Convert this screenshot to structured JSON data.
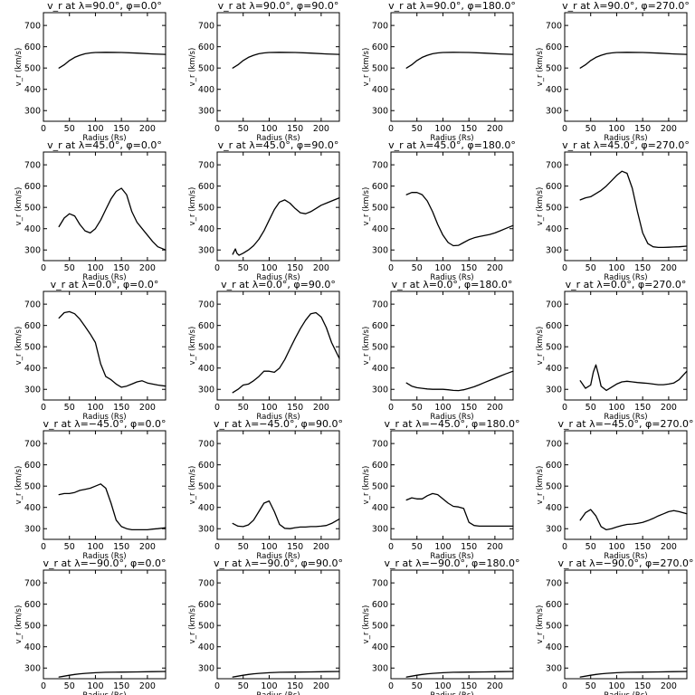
{
  "figure": {
    "background": "#ffffff",
    "line_color": "#000000"
  },
  "chart_data": [
    {
      "type": "line",
      "row": 0,
      "col": 0,
      "title": "v_r at λ=90.0°, φ=0.0°",
      "xlabel": "Radius (Rs)",
      "ylabel": "v_r (km/s)",
      "xlim": [
        0,
        235
      ],
      "ylim": [
        250,
        760
      ],
      "xticks": [
        0,
        50,
        100,
        150,
        200
      ],
      "yticks": [
        300,
        400,
        500,
        600,
        700
      ],
      "x": [
        30,
        40,
        50,
        60,
        70,
        80,
        90,
        100,
        120,
        150,
        180,
        210,
        235
      ],
      "y": [
        500,
        515,
        535,
        550,
        560,
        567,
        571,
        573,
        574,
        573,
        570,
        566,
        564
      ]
    },
    {
      "type": "line",
      "row": 0,
      "col": 1,
      "title": "v_r at λ=90.0°, φ=90.0°",
      "xlabel": "Radius (Rs)",
      "ylabel": "v_r (km/s)",
      "xlim": [
        0,
        235
      ],
      "ylim": [
        250,
        760
      ],
      "xticks": [
        0,
        50,
        100,
        150,
        200
      ],
      "yticks": [
        300,
        400,
        500,
        600,
        700
      ],
      "x": [
        30,
        40,
        50,
        60,
        70,
        80,
        90,
        100,
        120,
        150,
        180,
        210,
        235
      ],
      "y": [
        500,
        515,
        535,
        550,
        560,
        567,
        571,
        573,
        574,
        573,
        570,
        566,
        564
      ]
    },
    {
      "type": "line",
      "row": 0,
      "col": 2,
      "title": "v_r at λ=90.0°, φ=180.0°",
      "xlabel": "Radius (Rs)",
      "ylabel": "v_r (km/s)",
      "xlim": [
        0,
        235
      ],
      "ylim": [
        250,
        760
      ],
      "xticks": [
        0,
        50,
        100,
        150,
        200
      ],
      "yticks": [
        300,
        400,
        500,
        600,
        700
      ],
      "x": [
        30,
        40,
        50,
        60,
        70,
        80,
        90,
        100,
        120,
        150,
        180,
        210,
        235
      ],
      "y": [
        500,
        515,
        535,
        550,
        560,
        567,
        571,
        573,
        574,
        573,
        570,
        566,
        564
      ]
    },
    {
      "type": "line",
      "row": 0,
      "col": 3,
      "title": "v_r at λ=90.0°, φ=270.0°",
      "xlabel": "Radius (Rs)",
      "ylabel": "v_r (km/s)",
      "xlim": [
        0,
        235
      ],
      "ylim": [
        250,
        760
      ],
      "xticks": [
        0,
        50,
        100,
        150,
        200
      ],
      "yticks": [
        300,
        400,
        500,
        600,
        700
      ],
      "x": [
        30,
        40,
        50,
        60,
        70,
        80,
        90,
        100,
        120,
        150,
        180,
        210,
        235
      ],
      "y": [
        500,
        515,
        535,
        550,
        560,
        567,
        571,
        573,
        574,
        573,
        570,
        566,
        564
      ]
    },
    {
      "type": "line",
      "row": 1,
      "col": 0,
      "title": "v_r at λ=45.0°, φ=0.0°",
      "xlabel": "Radius (Rs)",
      "ylabel": "v_r (km/s)",
      "xlim": [
        0,
        235
      ],
      "ylim": [
        250,
        760
      ],
      "xticks": [
        0,
        50,
        100,
        150,
        200
      ],
      "yticks": [
        300,
        400,
        500,
        600,
        700
      ],
      "x": [
        30,
        40,
        50,
        60,
        70,
        80,
        90,
        100,
        110,
        120,
        130,
        140,
        150,
        160,
        170,
        180,
        190,
        200,
        210,
        220,
        235
      ],
      "y": [
        410,
        450,
        470,
        460,
        420,
        390,
        380,
        400,
        440,
        490,
        540,
        575,
        590,
        560,
        480,
        430,
        400,
        370,
        340,
        315,
        300
      ]
    },
    {
      "type": "line",
      "row": 1,
      "col": 1,
      "title": "v_r at λ=45.0°, φ=90.0°",
      "xlabel": "Radius (Rs)",
      "ylabel": "v_r (km/s)",
      "xlim": [
        0,
        235
      ],
      "ylim": [
        250,
        760
      ],
      "xticks": [
        0,
        50,
        100,
        150,
        200
      ],
      "yticks": [
        300,
        400,
        500,
        600,
        700
      ],
      "x": [
        30,
        35,
        38,
        42,
        50,
        60,
        70,
        80,
        90,
        100,
        110,
        120,
        130,
        140,
        150,
        160,
        170,
        180,
        190,
        200,
        210,
        220,
        235
      ],
      "y": [
        280,
        305,
        285,
        275,
        285,
        300,
        320,
        350,
        390,
        440,
        490,
        525,
        535,
        520,
        495,
        475,
        470,
        480,
        495,
        510,
        520,
        530,
        545
      ]
    },
    {
      "type": "line",
      "row": 1,
      "col": 2,
      "title": "v_r at λ=45.0°, φ=180.0°",
      "xlabel": "Radius (Rs)",
      "ylabel": "v_r (km/s)",
      "xlim": [
        0,
        235
      ],
      "ylim": [
        250,
        760
      ],
      "xticks": [
        0,
        50,
        100,
        150,
        200
      ],
      "yticks": [
        300,
        400,
        500,
        600,
        700
      ],
      "x": [
        30,
        40,
        50,
        60,
        70,
        80,
        90,
        100,
        110,
        120,
        130,
        140,
        150,
        160,
        170,
        180,
        190,
        200,
        210,
        220,
        235
      ],
      "y": [
        560,
        570,
        570,
        560,
        530,
        480,
        420,
        370,
        335,
        320,
        322,
        335,
        348,
        357,
        363,
        368,
        373,
        380,
        390,
        400,
        415
      ]
    },
    {
      "type": "line",
      "row": 1,
      "col": 3,
      "title": "v_r at λ=45.0°, φ=270.0°",
      "xlabel": "Radius (Rs)",
      "ylabel": "v_r (km/s)",
      "xlim": [
        0,
        235
      ],
      "ylim": [
        250,
        760
      ],
      "xticks": [
        0,
        50,
        100,
        150,
        200
      ],
      "yticks": [
        300,
        400,
        500,
        600,
        700
      ],
      "x": [
        30,
        40,
        50,
        60,
        70,
        80,
        90,
        100,
        110,
        120,
        130,
        140,
        150,
        160,
        170,
        180,
        190,
        200,
        210,
        220,
        235
      ],
      "y": [
        535,
        545,
        550,
        565,
        580,
        600,
        625,
        650,
        670,
        660,
        590,
        480,
        380,
        330,
        315,
        312,
        312,
        313,
        314,
        315,
        318
      ]
    },
    {
      "type": "line",
      "row": 2,
      "col": 0,
      "title": "v_r at λ=0.0°, φ=0.0°",
      "xlabel": "Radius (Rs)",
      "ylabel": "v_r (km/s)",
      "xlim": [
        0,
        235
      ],
      "ylim": [
        250,
        760
      ],
      "xticks": [
        0,
        50,
        100,
        150,
        200
      ],
      "yticks": [
        300,
        400,
        500,
        600,
        700
      ],
      "x": [
        30,
        40,
        50,
        60,
        70,
        80,
        90,
        100,
        110,
        120,
        130,
        140,
        150,
        160,
        170,
        180,
        190,
        200,
        210,
        220,
        235
      ],
      "y": [
        635,
        660,
        665,
        655,
        630,
        595,
        560,
        520,
        420,
        360,
        345,
        325,
        310,
        315,
        325,
        335,
        340,
        330,
        325,
        320,
        315
      ]
    },
    {
      "type": "line",
      "row": 2,
      "col": 1,
      "title": "v_r at λ=0.0°, φ=90.0°",
      "xlabel": "Radius (Rs)",
      "ylabel": "v_r (km/s)",
      "xlim": [
        0,
        235
      ],
      "ylim": [
        250,
        760
      ],
      "xticks": [
        0,
        50,
        100,
        150,
        200
      ],
      "yticks": [
        300,
        400,
        500,
        600,
        700
      ],
      "x": [
        30,
        40,
        50,
        60,
        70,
        80,
        90,
        100,
        110,
        120,
        130,
        140,
        150,
        160,
        170,
        180,
        190,
        200,
        210,
        220,
        235
      ],
      "y": [
        285,
        300,
        320,
        325,
        340,
        360,
        385,
        385,
        380,
        400,
        440,
        490,
        540,
        585,
        625,
        655,
        660,
        640,
        590,
        520,
        445
      ]
    },
    {
      "type": "line",
      "row": 2,
      "col": 2,
      "title": "v_r at λ=0.0°, φ=180.0°",
      "xlabel": "Radius (Rs)",
      "ylabel": "v_r (km/s)",
      "xlim": [
        0,
        235
      ],
      "ylim": [
        250,
        760
      ],
      "xticks": [
        0,
        50,
        100,
        150,
        200
      ],
      "yticks": [
        300,
        400,
        500,
        600,
        700
      ],
      "x": [
        30,
        40,
        50,
        60,
        70,
        80,
        90,
        100,
        110,
        120,
        130,
        140,
        150,
        160,
        170,
        180,
        190,
        200,
        210,
        220,
        235
      ],
      "y": [
        330,
        315,
        308,
        305,
        302,
        300,
        300,
        300,
        298,
        295,
        294,
        298,
        305,
        312,
        322,
        332,
        342,
        352,
        362,
        372,
        385
      ]
    },
    {
      "type": "line",
      "row": 2,
      "col": 3,
      "title": "v_r at λ=0.0°, φ=270.0°",
      "xlabel": "Radius (Rs)",
      "ylabel": "v_r (km/s)",
      "xlim": [
        0,
        235
      ],
      "ylim": [
        250,
        760
      ],
      "xticks": [
        0,
        50,
        100,
        150,
        200
      ],
      "yticks": [
        300,
        400,
        500,
        600,
        700
      ],
      "x": [
        30,
        40,
        50,
        55,
        60,
        65,
        70,
        80,
        90,
        100,
        110,
        120,
        130,
        140,
        150,
        160,
        170,
        180,
        190,
        200,
        210,
        220,
        235
      ],
      "y": [
        340,
        305,
        320,
        380,
        415,
        370,
        315,
        295,
        310,
        325,
        335,
        338,
        335,
        332,
        330,
        328,
        325,
        322,
        322,
        325,
        330,
        345,
        385
      ]
    },
    {
      "type": "line",
      "row": 3,
      "col": 0,
      "title": "v_r at λ=−45.0°, φ=0.0°",
      "xlabel": "Radius (Rs)",
      "ylabel": "v_r (km/s)",
      "xlim": [
        0,
        235
      ],
      "ylim": [
        250,
        760
      ],
      "xticks": [
        0,
        50,
        100,
        150,
        200
      ],
      "yticks": [
        300,
        400,
        500,
        600,
        700
      ],
      "x": [
        30,
        40,
        50,
        60,
        70,
        80,
        90,
        100,
        110,
        120,
        130,
        140,
        150,
        160,
        170,
        180,
        190,
        200,
        210,
        220,
        235
      ],
      "y": [
        460,
        465,
        465,
        470,
        480,
        485,
        490,
        500,
        510,
        490,
        420,
        340,
        310,
        300,
        295,
        295,
        295,
        295,
        298,
        300,
        305
      ]
    },
    {
      "type": "line",
      "row": 3,
      "col": 1,
      "title": "v_r at λ=−45.0°, φ=90.0°",
      "xlabel": "Radius (Rs)",
      "ylabel": "v_r (km/s)",
      "xlim": [
        0,
        235
      ],
      "ylim": [
        250,
        760
      ],
      "xticks": [
        0,
        50,
        100,
        150,
        200
      ],
      "yticks": [
        300,
        400,
        500,
        600,
        700
      ],
      "x": [
        30,
        40,
        50,
        60,
        70,
        80,
        90,
        100,
        110,
        120,
        130,
        140,
        150,
        160,
        170,
        180,
        190,
        200,
        210,
        220,
        235
      ],
      "y": [
        325,
        312,
        310,
        318,
        340,
        380,
        420,
        430,
        380,
        320,
        302,
        300,
        305,
        308,
        308,
        310,
        310,
        312,
        315,
        325,
        345
      ]
    },
    {
      "type": "line",
      "row": 3,
      "col": 2,
      "title": "v_r at λ=−45.0°, φ=180.0°",
      "xlabel": "Radius (Rs)",
      "ylabel": "v_r (km/s)",
      "xlim": [
        0,
        235
      ],
      "ylim": [
        250,
        760
      ],
      "xticks": [
        0,
        50,
        100,
        150,
        200
      ],
      "yticks": [
        300,
        400,
        500,
        600,
        700
      ],
      "x": [
        30,
        40,
        50,
        60,
        70,
        80,
        90,
        100,
        110,
        120,
        130,
        140,
        150,
        160,
        170,
        180,
        190,
        200,
        210,
        220,
        235
      ],
      "y": [
        435,
        445,
        440,
        440,
        455,
        465,
        460,
        440,
        420,
        405,
        402,
        395,
        330,
        315,
        312,
        312,
        312,
        312,
        312,
        312,
        312
      ]
    },
    {
      "type": "line",
      "row": 3,
      "col": 3,
      "title": "v_r at λ=−45.0°, φ=270.0°",
      "xlabel": "Radius (Rs)",
      "ylabel": "v_r (km/s)",
      "xlim": [
        0,
        235
      ],
      "ylim": [
        250,
        760
      ],
      "xticks": [
        0,
        50,
        100,
        150,
        200
      ],
      "yticks": [
        300,
        400,
        500,
        600,
        700
      ],
      "x": [
        30,
        40,
        50,
        60,
        70,
        80,
        90,
        100,
        110,
        120,
        130,
        140,
        150,
        160,
        170,
        180,
        190,
        200,
        210,
        220,
        235
      ],
      "y": [
        340,
        375,
        390,
        360,
        310,
        295,
        300,
        308,
        315,
        320,
        322,
        325,
        330,
        338,
        348,
        360,
        370,
        380,
        385,
        380,
        370
      ]
    },
    {
      "type": "line",
      "row": 4,
      "col": 0,
      "title": "v_r at λ=−90.0°, φ=0.0°",
      "xlabel": "Radius (Rs)",
      "ylabel": "v_r (km/s)",
      "xlim": [
        0,
        235
      ],
      "ylim": [
        250,
        760
      ],
      "xticks": [
        0,
        50,
        100,
        150,
        200
      ],
      "yticks": [
        300,
        400,
        500,
        600,
        700
      ],
      "x": [
        30,
        40,
        50,
        60,
        70,
        80,
        100,
        120,
        150,
        180,
        210,
        235
      ],
      "y": [
        258,
        262,
        266,
        270,
        273,
        275,
        278,
        280,
        281,
        282,
        283,
        284
      ]
    },
    {
      "type": "line",
      "row": 4,
      "col": 1,
      "title": "v_r at λ=−90.0°, φ=90.0°",
      "xlabel": "Radius (Rs)",
      "ylabel": "v_r (km/s)",
      "xlim": [
        0,
        235
      ],
      "ylim": [
        250,
        760
      ],
      "xticks": [
        0,
        50,
        100,
        150,
        200
      ],
      "yticks": [
        300,
        400,
        500,
        600,
        700
      ],
      "x": [
        30,
        40,
        50,
        60,
        70,
        80,
        100,
        120,
        150,
        180,
        210,
        235
      ],
      "y": [
        258,
        262,
        266,
        270,
        273,
        275,
        278,
        280,
        281,
        282,
        283,
        284
      ]
    },
    {
      "type": "line",
      "row": 4,
      "col": 2,
      "title": "v_r at λ=−90.0°, φ=180.0°",
      "xlabel": "Radius (Rs)",
      "ylabel": "v_r (km/s)",
      "xlim": [
        0,
        235
      ],
      "ylim": [
        250,
        760
      ],
      "xticks": [
        0,
        50,
        100,
        150,
        200
      ],
      "yticks": [
        300,
        400,
        500,
        600,
        700
      ],
      "x": [
        30,
        40,
        50,
        60,
        70,
        80,
        100,
        120,
        150,
        180,
        210,
        235
      ],
      "y": [
        258,
        262,
        266,
        270,
        273,
        275,
        278,
        280,
        281,
        282,
        283,
        284
      ]
    },
    {
      "type": "line",
      "row": 4,
      "col": 3,
      "title": "v_r at λ=−90.0°, φ=270.0°",
      "xlabel": "Radius (Rs)",
      "ylabel": "v_r (km/s)",
      "xlim": [
        0,
        235
      ],
      "ylim": [
        250,
        760
      ],
      "xticks": [
        0,
        50,
        100,
        150,
        200
      ],
      "yticks": [
        300,
        400,
        500,
        600,
        700
      ],
      "x": [
        30,
        40,
        50,
        60,
        70,
        80,
        100,
        120,
        150,
        180,
        210,
        235
      ],
      "y": [
        258,
        262,
        266,
        270,
        273,
        275,
        278,
        280,
        281,
        282,
        283,
        284
      ]
    }
  ]
}
